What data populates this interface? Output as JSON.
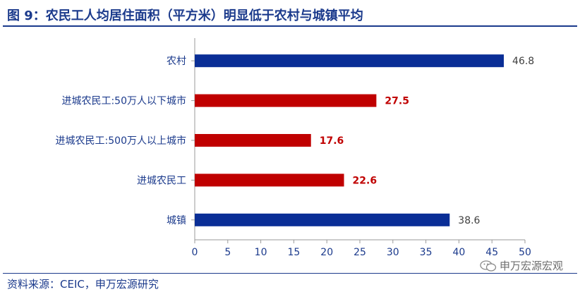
{
  "header": {
    "title": "图 9：农民工人均居住面积（平方米）明显低于农村与城镇平均"
  },
  "footer": {
    "source": "资料来源：CEIC，申万宏源研究"
  },
  "watermark": {
    "text": "申万宏源宏观",
    "icon": "wechat-icon"
  },
  "colors": {
    "blue": "#0a2e96",
    "red": "#c00000",
    "axis": "#9a9a9a",
    "text": "#1b3a8c"
  },
  "chart_data": {
    "type": "bar",
    "orientation": "horizontal",
    "title": "",
    "xlabel": "",
    "ylabel": "",
    "xlim": [
      0,
      50
    ],
    "xticks": [
      0,
      5,
      10,
      15,
      20,
      25,
      30,
      35,
      40,
      45,
      50
    ],
    "grid": false,
    "legend": "none",
    "categories": [
      "农村",
      "进城农民工:50万人以下城市",
      "进城农民工:500万人以上城市",
      "进城农民工",
      "城镇"
    ],
    "values": [
      46.8,
      27.5,
      17.6,
      22.6,
      38.6
    ],
    "value_labels": [
      "46.8",
      "27.5",
      "17.6",
      "22.6",
      "38.6"
    ],
    "bar_colors": [
      "#0a2e96",
      "#c00000",
      "#c00000",
      "#c00000",
      "#0a2e96"
    ],
    "label_colors": [
      "#404040",
      "#c00000",
      "#c00000",
      "#c00000",
      "#404040"
    ],
    "label_bold": [
      false,
      true,
      true,
      true,
      false
    ]
  }
}
